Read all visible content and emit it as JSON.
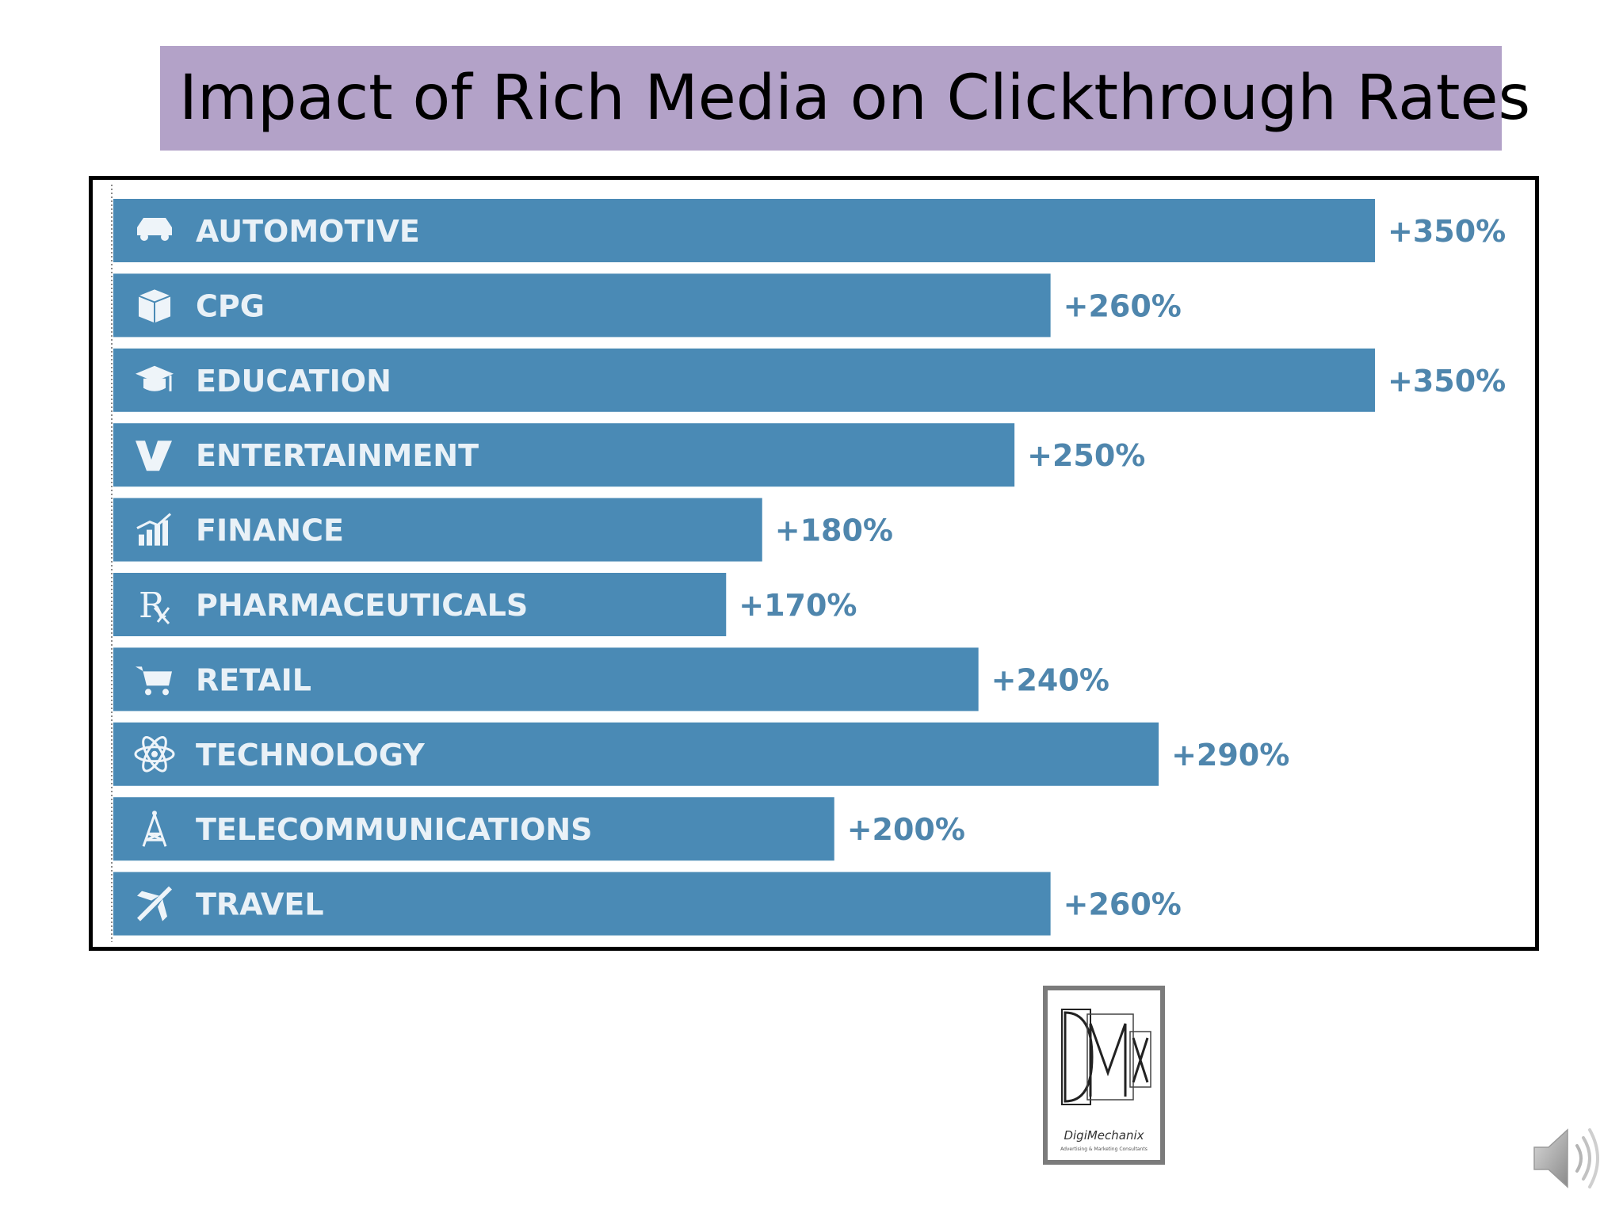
{
  "slide": {
    "title": "Impact of Rich Media on Clickthrough Rates"
  },
  "colors": {
    "bar": "#4a8ab5",
    "value_label": "#4f86ad",
    "category_label": "#e9f1f7",
    "title_background": "#b3a2c8"
  },
  "chart_data": {
    "type": "bar",
    "orientation": "horizontal",
    "title": "",
    "xlabel": "",
    "ylabel": "",
    "xlim": [
      0,
      350
    ],
    "grid": false,
    "legend": "none",
    "categories": [
      "AUTOMOTIVE",
      "CPG",
      "EDUCATION",
      "ENTERTAINMENT",
      "FINANCE",
      "PHARMACEUTICALS",
      "RETAIL",
      "TECHNOLOGY",
      "TELECOMMUNICATIONS",
      "TRAVEL"
    ],
    "values": [
      350,
      260,
      350,
      250,
      180,
      170,
      240,
      290,
      200,
      260
    ],
    "value_labels": [
      "+350%",
      "+260%",
      "+350%",
      "+250%",
      "+180%",
      "+170%",
      "+240%",
      "+290%",
      "+200%",
      "+260%"
    ],
    "icons": [
      "car-icon",
      "box-icon",
      "graduation-cap-icon",
      "film-icon",
      "growth-chart-icon",
      "rx-icon",
      "cart-icon",
      "atom-icon",
      "tower-icon",
      "airplane-icon"
    ]
  },
  "logo": {
    "mark": "DMX",
    "caption": "DigiMechanix",
    "subcaption": "Advertising & Marketing Consultants"
  },
  "audio": {
    "icon": "speaker-icon"
  }
}
